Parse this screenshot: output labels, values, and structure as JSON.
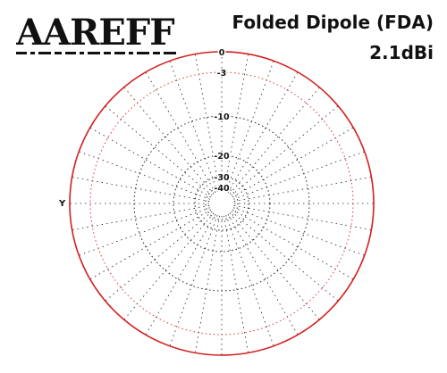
{
  "logo": {
    "text": "AAREFF",
    "tagline_pattern": "dashes"
  },
  "header": {
    "title": "Folded Dipole (FDA)",
    "gain": "2.1dBi"
  },
  "colors": {
    "pattern": "#d42020",
    "ring_db3": "#e03a3a",
    "grid": "#222222",
    "text": "#111111"
  },
  "chart_data": {
    "type": "polar",
    "title": "Folded Dipole (FDA)",
    "subtitle": "2.1dBi",
    "radial_axis": {
      "unit": "dB",
      "ticks": [
        0,
        -3,
        -10,
        -20,
        -30,
        -40
      ],
      "tick_labels": [
        "0",
        "-3",
        "-10",
        "-20",
        "-30",
        "-40"
      ]
    },
    "angular_grid_step_deg": 10,
    "axis_label_left": "Y",
    "series": [
      {
        "angles_deg": [
          0,
          30,
          60,
          90,
          120,
          150,
          180,
          210,
          240,
          270,
          300,
          330
        ],
        "values_db": [
          0,
          0,
          0,
          0,
          0,
          0,
          0,
          0,
          0,
          0,
          0,
          0
        ]
      }
    ]
  }
}
